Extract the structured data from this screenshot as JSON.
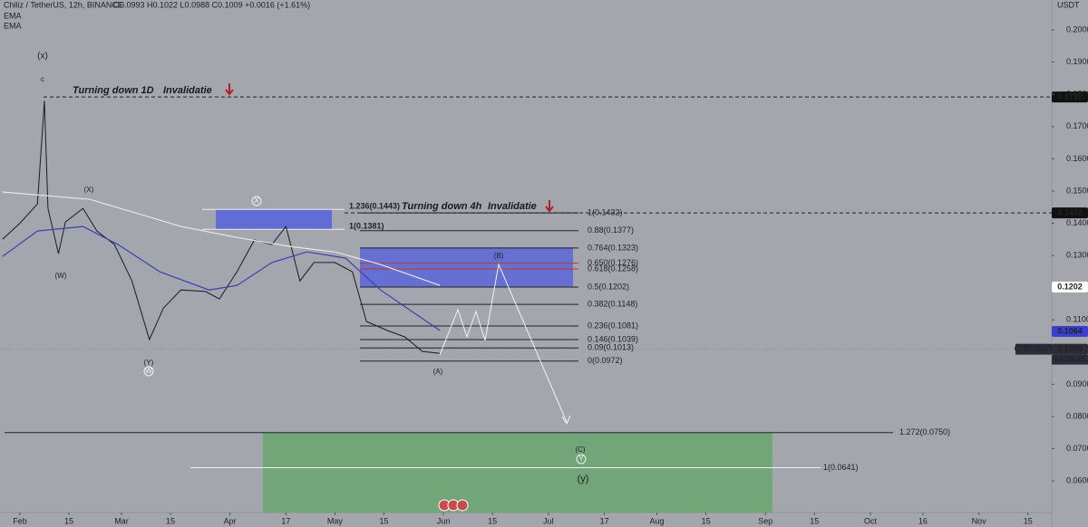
{
  "header": {
    "symbol": "Chiliz / TetherUS, 12h, BINANCE",
    "ohlc": "O0.0993  H0.1022  L0.0988  C0.1009  +0.0016 (+1.61%)",
    "indicators": [
      "EMA",
      "EMA"
    ]
  },
  "chart_data": {
    "type": "line",
    "currency": "USDT",
    "xlim": [
      -5.7,
      294.8
    ],
    "ylim": [
      0.0457,
      0.2093
    ],
    "xticks": [
      {
        "value": 0,
        "label": "Feb"
      },
      {
        "value": 14,
        "label": "15"
      },
      {
        "value": 29,
        "label": "Mar"
      },
      {
        "value": 43,
        "label": "15"
      },
      {
        "value": 60,
        "label": "Apr"
      },
      {
        "value": 76,
        "label": "17"
      },
      {
        "value": 90,
        "label": "May"
      },
      {
        "value": 104,
        "label": "15"
      },
      {
        "value": 121,
        "label": "Jun"
      },
      {
        "value": 135,
        "label": "15"
      },
      {
        "value": 151,
        "label": "Jul"
      },
      {
        "value": 167,
        "label": "17"
      },
      {
        "value": 182,
        "label": "Aug"
      },
      {
        "value": 196,
        "label": "15"
      },
      {
        "value": 213,
        "label": "Sep"
      },
      {
        "value": 227,
        "label": "15"
      },
      {
        "value": 243,
        "label": "Oct"
      },
      {
        "value": 258,
        "label": "16"
      },
      {
        "value": 274,
        "label": "Nov"
      },
      {
        "value": 288,
        "label": "15"
      }
    ],
    "yticks": [
      {
        "value": 0.2,
        "label": "0.2000"
      },
      {
        "value": 0.19,
        "label": "0.1900"
      },
      {
        "value": 0.18,
        "label": "0.1800"
      },
      {
        "value": 0.17,
        "label": "0.1700"
      },
      {
        "value": 0.16,
        "label": "0.1600"
      },
      {
        "value": 0.15,
        "label": "0.1500"
      },
      {
        "value": 0.14,
        "label": "0.1400"
      },
      {
        "value": 0.13,
        "label": "0.1300"
      },
      {
        "value": 0.11,
        "label": "0.1100"
      },
      {
        "value": 0.09,
        "label": "0.0900"
      },
      {
        "value": 0.08,
        "label": "0.0800"
      },
      {
        "value": 0.07,
        "label": "0.0700"
      },
      {
        "value": 0.06,
        "label": "0.0600"
      }
    ],
    "series": [
      {
        "name": "CHZUSDT",
        "color": "#1c1c1c",
        "x": [
          -5,
          0,
          5,
          7,
          8,
          11,
          13,
          18,
          22,
          27,
          32,
          37,
          41,
          46,
          53,
          57,
          62,
          67,
          72,
          76,
          80,
          84,
          90,
          95,
          99,
          105,
          110,
          115,
          120
        ],
        "values": [
          0.135,
          0.14,
          0.146,
          0.178,
          0.1446,
          0.1306,
          0.1404,
          0.1446,
          0.1376,
          0.1334,
          0.1221,
          0.1039,
          0.1137,
          0.1193,
          0.1188,
          0.1165,
          0.1249,
          0.1348,
          0.1334,
          0.139,
          0.1221,
          0.1278,
          0.1278,
          0.1249,
          0.1095,
          0.1067,
          0.1047,
          0.1002,
          0.0996
        ]
      },
      {
        "name": "EMA",
        "color": "#e6e6e6",
        "x": [
          -5,
          20,
          33,
          46,
          62,
          77,
          90,
          103,
          120
        ],
        "values": [
          0.1497,
          0.1474,
          0.1432,
          0.139,
          0.1356,
          0.1328,
          0.1311,
          0.1272,
          0.1207
        ]
      },
      {
        "name": "EMA",
        "color": "#3a3fb5",
        "x": [
          -5,
          5,
          18,
          28,
          40,
          54,
          62,
          72,
          82,
          93,
          103,
          120
        ],
        "values": [
          0.1297,
          0.1376,
          0.139,
          0.1334,
          0.1249,
          0.1193,
          0.1207,
          0.1278,
          0.1311,
          0.1292,
          0.1193,
          0.1067
        ]
      }
    ],
    "price_labels": [
      {
        "value": 0.1792,
        "label": "0.1792",
        "color": "#111111",
        "text_color": "#ffffff"
      },
      {
        "value": 0.1432,
        "label": "0.1432",
        "color": "#111111",
        "text_color": "#ffffff"
      },
      {
        "value": 0.1202,
        "label": "0.1202",
        "color": "#ffffff",
        "text_color": "#222222"
      },
      {
        "value": 0.1064,
        "label": "0.1064",
        "color": "#3a3fd0",
        "text_color": "#ffffff"
      },
      {
        "value": 0.1009,
        "label": "0.1009",
        "color": "#2a2e39",
        "text_color": "#ffffff",
        "symbol": "CHZUSDT",
        "countdown": "04:38:45"
      }
    ],
    "fib_levels": [
      {
        "value": 0.1432,
        "label": "1(0.1432)",
        "color": "#222222"
      },
      {
        "value": 0.1377,
        "label": "0.88(0.1377)",
        "color": "#222222"
      },
      {
        "value": 0.1323,
        "label": "0.764(0.1323)",
        "color": "#222222"
      },
      {
        "value": 0.1276,
        "label": "0.650(0.1276)",
        "color": "#c0392b"
      },
      {
        "value": 0.1258,
        "label": "0.618(0.1258)",
        "color": "#c0392b"
      },
      {
        "value": 0.1202,
        "label": "0.5(0.1202)",
        "color": "#222222"
      },
      {
        "value": 0.1148,
        "label": "0.382(0.1148)",
        "color": "#222222"
      },
      {
        "value": 0.1081,
        "label": "0.236(0.1081)",
        "color": "#222222"
      },
      {
        "value": 0.1039,
        "label": "0.146(0.1039)",
        "color": "#222222"
      },
      {
        "value": 0.1013,
        "label": "0.09(0.1013)",
        "color": "#222222"
      },
      {
        "value": 0.0972,
        "label": "0(0.0972)",
        "color": "#222222"
      }
    ],
    "zone_levels": [
      {
        "value": 0.1443,
        "label": "1.236(0.1443)"
      },
      {
        "value": 0.1381,
        "label": "1(0.1381)"
      }
    ],
    "target_levels": [
      {
        "value": 0.075,
        "label": "1.272(0.0750)"
      },
      {
        "value": 0.0641,
        "label": "1(0.0641)"
      }
    ],
    "zones": [
      {
        "top": 0.1325,
        "bottom": 0.1202,
        "color": "#5a66d8"
      },
      {
        "top": 0.0749,
        "bottom": 0.0502,
        "color": "#6aa56e"
      }
    ],
    "annotations": {
      "turn_1d": "Turning down 1D",
      "inval_1d": "Invalidatie",
      "turn_4h": "Turning down 4h",
      "inval_4h": "Invalidatie",
      "waves": {
        "x_paren": "(x)",
        "c": "c",
        "X_paren": "(X)",
        "W_paren": "(W)",
        "Y_paren": "(Y)",
        "W": "W",
        "X": "X",
        "A_paren": "(A)",
        "B_paren": "(B)",
        "C_paren": "(C)",
        "Y": "Y",
        "y_paren": "(y)"
      }
    }
  }
}
